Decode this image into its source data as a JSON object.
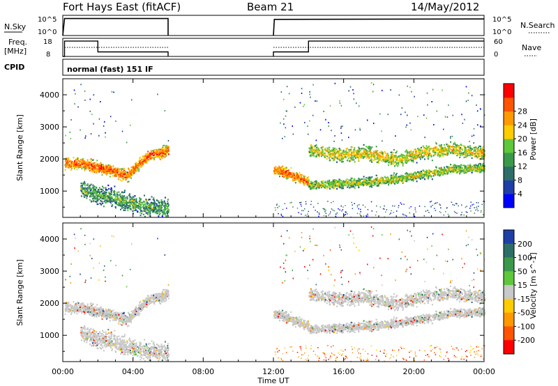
{
  "header": {
    "station": "Fort Hays East (fitACF)",
    "beam": "Beam 21",
    "date": "14/May/2012"
  },
  "noise_panel": {
    "left_label": "N.Sky",
    "left_ticks": [
      "10^5",
      "10^0"
    ],
    "right_label": "N.Search",
    "right_ticks": [
      "10^5",
      "10^0"
    ]
  },
  "freq_panel": {
    "left_label_line1": "Freq.",
    "left_label_line2": "[MHz]",
    "left_ticks": [
      "18",
      "8"
    ],
    "right_label": "Nave",
    "right_ticks": [
      "60",
      "0"
    ]
  },
  "cpid": {
    "label": "CPID",
    "text": "normal (fast) 151 IF"
  },
  "colors": {
    "power_scale": [
      "#0000ff",
      "#1f3fa6",
      "#2e6e68",
      "#3a9a4a",
      "#5ec73c",
      "#ffcc00",
      "#ff9900",
      "#ff5500",
      "#ff0000"
    ],
    "velocity_scale": [
      "#1f3fa6",
      "#2e6e68",
      "#3a9a4a",
      "#5ec73c",
      "#c8c8c8",
      "#ffcc00",
      "#ff9900",
      "#ff5500",
      "#ff0000"
    ],
    "ground_scatter": "#c8c8c8"
  },
  "chart_data": [
    {
      "type": "heatmap",
      "panel": "power",
      "ylabel": "Slant Range [km]",
      "yticks": [
        "1000",
        "2000",
        "3000",
        "4000"
      ],
      "ylim": [
        180,
        4500
      ],
      "xlim": [
        0,
        24
      ],
      "colorbar": {
        "label": "Power [dB]",
        "ticks": [
          "4",
          "8",
          "12",
          "16",
          "20",
          "24",
          "28"
        ],
        "range": [
          0,
          32
        ]
      },
      "data_gap_hours": [
        6,
        12
      ],
      "bands": [
        {
          "x": [
            0.1,
            6
          ],
          "center_km": [
            1900,
            1850,
            1700,
            1500,
            2100,
            2300
          ],
          "width_km": 250,
          "power_db": 26
        },
        {
          "x": [
            1,
            6
          ],
          "center_km": [
            1100,
            900,
            800,
            600,
            500,
            500
          ],
          "width_km": 400,
          "power_db": 14
        },
        {
          "x": [
            12,
            14
          ],
          "center_km": [
            1700,
            1600,
            1450,
            1300
          ],
          "width_km": 220,
          "power_db": 26
        },
        {
          "x": [
            14,
            24
          ],
          "center_km": [
            2300,
            2150,
            2200,
            2000,
            2250,
            2300,
            2200
          ],
          "width_km": 300,
          "power_db": 20
        },
        {
          "x": [
            14,
            24
          ],
          "center_km": [
            1200,
            1250,
            1300,
            1400,
            1550,
            1700,
            1750
          ],
          "width_km": 200,
          "power_db": 18
        }
      ]
    },
    {
      "type": "heatmap",
      "panel": "velocity",
      "ylabel": "Slant Range [km]",
      "xlabel": "Time UT",
      "yticks": [
        "1000",
        "2000",
        "3000",
        "4000"
      ],
      "xticks": [
        "00:00",
        "04:00",
        "08:00",
        "12:00",
        "16:00",
        "20:00",
        "00:00"
      ],
      "ylim": [
        180,
        4500
      ],
      "xlim": [
        0,
        24
      ],
      "colorbar": {
        "label": "Velocity [m s^-1]",
        "ticks": [
          "200",
          "100",
          "50",
          "15",
          "-15",
          "-50",
          "-100",
          "-200"
        ]
      },
      "data_gap_hours": [
        6,
        12
      ]
    },
    {
      "type": "line",
      "panel": "noise",
      "series": [
        {
          "x": [
            0,
            0.1,
            6,
            6
          ],
          "values": [
            0,
            4.2,
            4.2,
            0
          ]
        },
        {
          "x": [
            12,
            12.05,
            24
          ],
          "values": [
            0,
            4.0,
            4.1
          ]
        }
      ],
      "ylim": [
        0,
        5
      ]
    },
    {
      "type": "line",
      "panel": "frequency",
      "series": [
        {
          "x": [
            0,
            0.1,
            0.1,
            2,
            2,
            6,
            6
          ],
          "values": [
            8,
            8,
            16.5,
            16.5,
            10.5,
            10.5,
            8
          ]
        },
        {
          "x": [
            12,
            12,
            14,
            14,
            24
          ],
          "values": [
            8,
            10.5,
            10.5,
            16.5,
            16.5
          ]
        }
      ],
      "nave_series": [
        {
          "x": [
            0.1,
            2,
            2,
            6
          ],
          "values": [
            13,
            13,
            13,
            13
          ]
        },
        {
          "x": [
            12,
            14,
            14,
            24
          ],
          "values": [
            13,
            13,
            13,
            13
          ]
        }
      ],
      "ylim": [
        8,
        18
      ]
    }
  ]
}
